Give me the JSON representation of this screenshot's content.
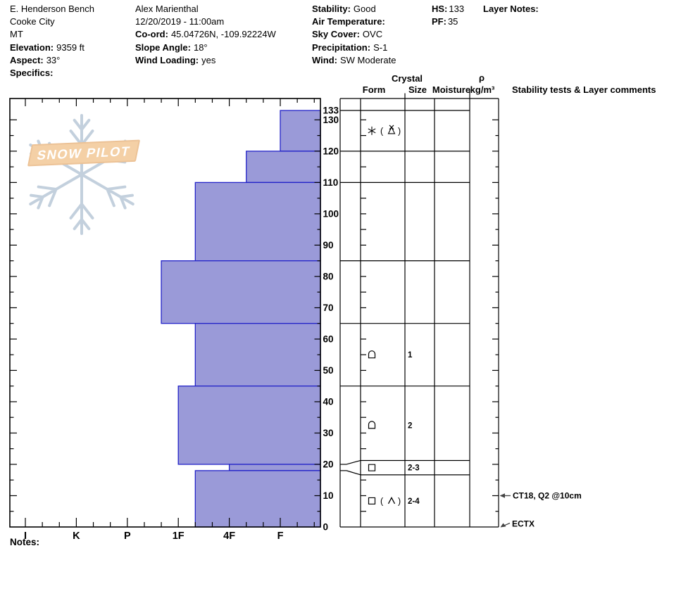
{
  "header": {
    "col1": {
      "pit_name": "E. Henderson Bench",
      "location": "Cooke City",
      "state": "MT",
      "elevation_label": "Elevation:",
      "elevation": "9359 ft",
      "aspect_label": "Aspect:",
      "aspect": "33°",
      "specifics_label": "Specifics:",
      "specifics": ""
    },
    "col2": {
      "observer": "Alex Marienthal",
      "datetime": "12/20/2019 - 11:00am",
      "coord_label": "Co-ord:",
      "coord": "45.04726N, -109.92224W",
      "slope_angle_label": "Slope Angle:",
      "slope_angle": "18°",
      "wind_loading_label": "Wind Loading:",
      "wind_loading": "yes"
    },
    "col3": {
      "stability_label": "Stability:",
      "stability": "Good",
      "air_temp_label": "Air Temperature:",
      "air_temp": "",
      "sky_cover_label": "Sky Cover:",
      "sky_cover": "OVC",
      "precip_label": "Precipitation:",
      "precip": "S-1",
      "wind_label": "Wind:",
      "wind": "SW Moderate"
    },
    "col4": {
      "hs_label": "HS:",
      "hs": "133",
      "pf_label": "PF:",
      "pf": "35"
    },
    "col5": {
      "layer_notes_label": "Layer Notes:"
    }
  },
  "logo": {
    "text": "SNOW PILOT"
  },
  "notes_label": "Notes:",
  "table_headers": {
    "crystal": "Crystal",
    "form": "Form",
    "size": "Size",
    "moisture": "Moisture",
    "rho": "ρ",
    "rho_units": "kg/m³",
    "stability": "Stability tests & Layer comments"
  },
  "chart_data": {
    "type": "bar",
    "subtype": "snow-hardness-profile",
    "title": "Snow pit hardness profile",
    "hardness_axis": {
      "categories": [
        "I",
        "K",
        "P",
        "1F",
        "4F",
        "F"
      ],
      "orientation": "hard-left-to-soft-right"
    },
    "depth_axis": {
      "unit": "cm",
      "min": 0,
      "max": 133,
      "tick_labels": [
        133,
        130,
        120,
        110,
        100,
        90,
        80,
        70,
        60,
        50,
        40,
        30,
        20,
        10,
        0
      ]
    },
    "total_snow_height_cm": 133,
    "layers": [
      {
        "top_cm": 133,
        "bottom_cm": 120,
        "hardness": "F",
        "grain_form_primary": "PP",
        "grain_form_secondary": "PPgp",
        "grain_symbols": [
          "stellar",
          "graupel"
        ],
        "size_mm": "",
        "moisture": "",
        "density": ""
      },
      {
        "top_cm": 120,
        "bottom_cm": 110,
        "hardness": "4F-",
        "grain_form_primary": "",
        "grain_form_secondary": "",
        "grain_symbols": [],
        "size_mm": "",
        "moisture": "",
        "density": ""
      },
      {
        "top_cm": 110,
        "bottom_cm": 85,
        "hardness": "1F-",
        "grain_form_primary": "",
        "grain_form_secondary": "",
        "grain_symbols": [],
        "size_mm": "",
        "moisture": "",
        "density": ""
      },
      {
        "top_cm": 85,
        "bottom_cm": 65,
        "hardness": "1F+",
        "grain_form_primary": "",
        "grain_form_secondary": "",
        "grain_symbols": [],
        "size_mm": "",
        "moisture": "",
        "density": ""
      },
      {
        "top_cm": 65,
        "bottom_cm": 45,
        "hardness": "1F-",
        "grain_form_primary": "FCxr",
        "grain_form_secondary": "",
        "grain_symbols": [
          "facet_rounded"
        ],
        "size_mm": "1",
        "moisture": "",
        "density": ""
      },
      {
        "top_cm": 45,
        "bottom_cm": 20,
        "hardness": "1F",
        "grain_form_primary": "FCxr",
        "grain_form_secondary": "",
        "grain_symbols": [
          "facet_rounded"
        ],
        "size_mm": "2",
        "moisture": "",
        "density": ""
      },
      {
        "top_cm": 20,
        "bottom_cm": 18,
        "hardness": "4F",
        "grain_form_primary": "FC",
        "grain_form_secondary": "",
        "grain_symbols": [
          "facet"
        ],
        "size_mm": "2-3",
        "moisture": "",
        "density": "",
        "thin_row_expanded": true
      },
      {
        "top_cm": 18,
        "bottom_cm": 0,
        "hardness": "1F-",
        "grain_form_primary": "FC",
        "grain_form_secondary": "DH",
        "grain_symbols": [
          "facet",
          "depth_hoar"
        ],
        "size_mm": "2-4",
        "moisture": "",
        "density": ""
      }
    ],
    "stability_tests": [
      {
        "label": "CT18, Q2 @10cm",
        "depth_cm": 10,
        "arrow": "left"
      },
      {
        "label": "ECTX",
        "depth_cm": 0,
        "arrow": "diagonal"
      }
    ],
    "colors": {
      "layer_fill": "#9a9ad8",
      "layer_border": "#2323c8",
      "axis": "#000000",
      "arrow": "#444444"
    }
  }
}
